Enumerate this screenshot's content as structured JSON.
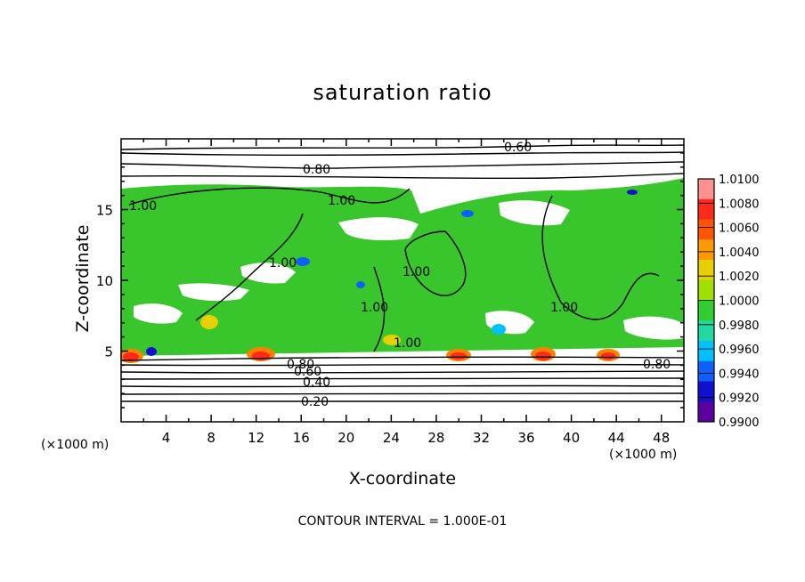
{
  "chart_data": {
    "type": "heatmap",
    "title": "saturation ratio",
    "xlabel": "X-coordinate",
    "ylabel": "Z-coordinate",
    "x_unit": "(×1000 m)",
    "z_unit": "(×1000 m)",
    "xlim": [
      0,
      50
    ],
    "ylim": [
      0,
      20
    ],
    "x_ticks": [
      4,
      8,
      12,
      16,
      20,
      24,
      28,
      32,
      36,
      40,
      44,
      48
    ],
    "y_ticks": [
      5,
      10,
      15
    ],
    "colorbar": {
      "min": 0.99,
      "max": 1.01,
      "tick_labels": [
        "1.0100",
        "1.0080",
        "1.0060",
        "1.0040",
        "1.0020",
        "1.0000",
        "0.9980",
        "0.9960",
        "0.9940",
        "0.9920",
        "0.9900"
      ],
      "colors": [
        "#ff9090",
        "#ff2a1a",
        "#ff5500",
        "#ff9900",
        "#e8d000",
        "#a0e000",
        "#30cc30",
        "#20d8a0",
        "#00c0ff",
        "#1060ff",
        "#1010d0",
        "#5a00a0"
      ]
    },
    "contour_labels": [
      "0.60",
      "0.80",
      "1.00",
      "1.00",
      "1.00",
      "1.00",
      "1.00",
      "1.00",
      "1.00",
      "0.80",
      "0.60",
      "0.40",
      "0.20",
      "0.80"
    ],
    "contour_interval_text": "CONTOUR INTERVAL = 1.000E-01"
  }
}
